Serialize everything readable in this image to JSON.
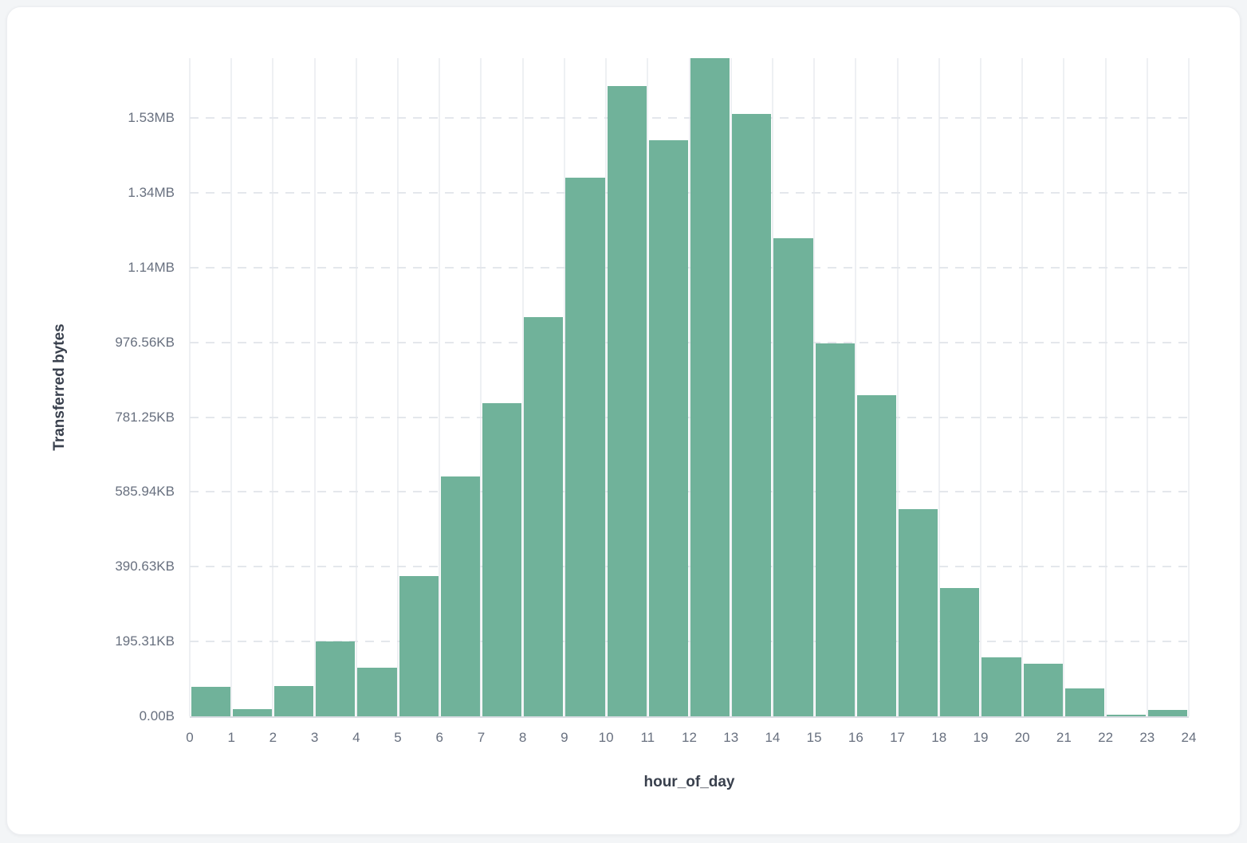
{
  "page": {
    "background_color": "#f3f5f7",
    "card_background_color": "#ffffff"
  },
  "colors": {
    "bar": "#70b29a",
    "vertical_gridline": "#eef0f3",
    "horizontal_gridline": "#e4e7ec",
    "axis_line": "#dadde3",
    "tick_text": "#68707f",
    "axis_title_text": "#39404d"
  },
  "chart_data": {
    "type": "bar",
    "title": "",
    "xlabel": "hour_of_day",
    "ylabel": "Transferred bytes",
    "values_unit": "bytes",
    "categories": [
      0,
      1,
      2,
      3,
      4,
      5,
      6,
      7,
      8,
      9,
      10,
      11,
      12,
      13,
      14,
      15,
      16,
      17,
      18,
      19,
      20,
      21,
      22,
      23
    ],
    "values": [
      78000,
      20000,
      81000,
      200000,
      130000,
      374000,
      642000,
      838000,
      1067000,
      1441000,
      1686000,
      1540000,
      1760000,
      1610000,
      1278000,
      997000,
      859000,
      554000,
      344000,
      158000,
      140000,
      74000,
      4000,
      18000
    ],
    "xlim": [
      0,
      24
    ],
    "ylim": [
      0,
      1760000
    ],
    "x_tick_labels": [
      "0",
      "1",
      "2",
      "3",
      "4",
      "5",
      "6",
      "7",
      "8",
      "9",
      "10",
      "11",
      "12",
      "13",
      "14",
      "15",
      "16",
      "17",
      "18",
      "19",
      "20",
      "21",
      "22",
      "23",
      "24"
    ],
    "y_ticks": [
      {
        "value": 0,
        "label": "0.00B"
      },
      {
        "value": 200000,
        "label": "195.31KB"
      },
      {
        "value": 400000,
        "label": "390.63KB"
      },
      {
        "value": 600000,
        "label": "585.94KB"
      },
      {
        "value": 800000,
        "label": "781.25KB"
      },
      {
        "value": 1000000,
        "label": "976.56KB"
      },
      {
        "value": 1200000,
        "label": "1.14MB"
      },
      {
        "value": 1400000,
        "label": "1.34MB"
      },
      {
        "value": 1600000,
        "label": "1.53MB"
      }
    ],
    "legend": null,
    "grid": {
      "vertical_lines": "solid",
      "horizontal_lines": "dashed"
    }
  }
}
